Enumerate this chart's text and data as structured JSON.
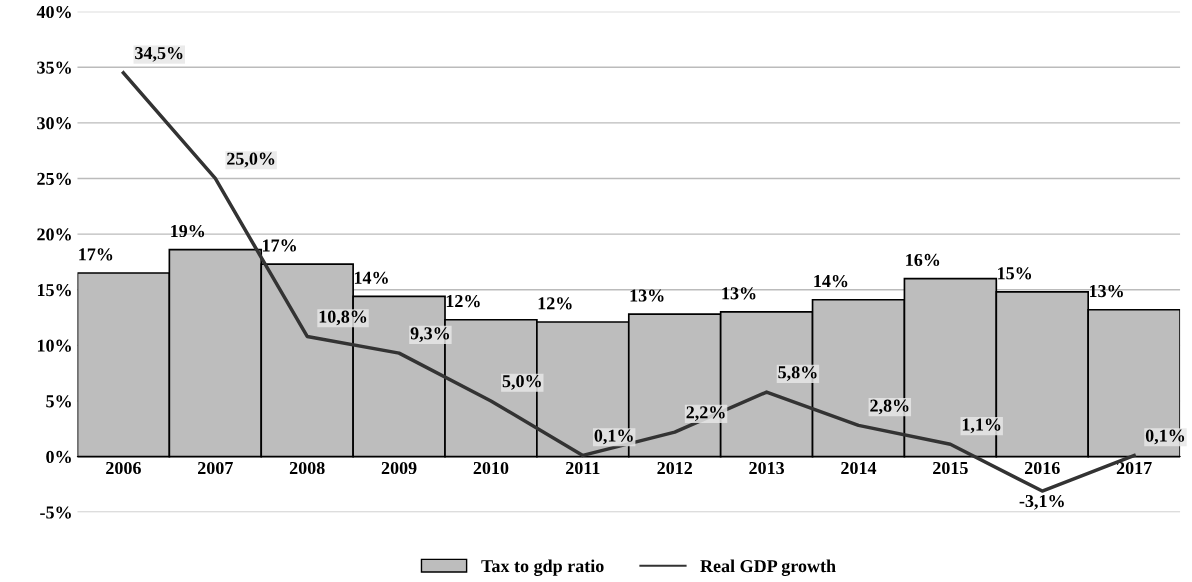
{
  "chart_data": {
    "type": "bar",
    "categories": [
      "2006",
      "2007",
      "2008",
      "2009",
      "2010",
      "2011",
      "2012",
      "2013",
      "2014",
      "2015",
      "2016",
      "2017"
    ],
    "series": [
      {
        "name": "Tax to gdp ratio",
        "color": "#bdbdbd",
        "values": [
          16.5,
          18.6,
          17.3,
          14.4,
          12.3,
          12.1,
          12.8,
          13.0,
          14.1,
          16.0,
          14.8,
          13.2
        ],
        "value_labels": [
          "17%",
          "19%",
          "17%",
          "14%",
          "12%",
          "12%",
          "13%",
          "13%",
          "14%",
          "16%",
          "15%",
          "13%"
        ]
      },
      {
        "name": "Real GDP growth",
        "type": "line",
        "color": "#333333",
        "values": [
          34.5,
          25.0,
          10.8,
          9.3,
          5.0,
          0.1,
          2.2,
          5.8,
          2.8,
          1.1,
          -3.1,
          0.1
        ],
        "value_labels": [
          "34,5%",
          "25,0%",
          "10,8%",
          "9,3%",
          "5,0%",
          "0,1%",
          "2,2%",
          "5,8%",
          "2,8%",
          "1,1%",
          "-3,1%",
          "0,1%"
        ]
      }
    ],
    "ylim": [
      -5,
      40
    ],
    "yticks": [
      {
        "value": -5,
        "label": "-5%"
      },
      {
        "value": 0,
        "label": "0%"
      },
      {
        "value": 5,
        "label": "5%"
      },
      {
        "value": 10,
        "label": "10%"
      },
      {
        "value": 15,
        "label": "15%"
      },
      {
        "value": 20,
        "label": "20%"
      },
      {
        "value": 25,
        "label": "25%"
      },
      {
        "value": 30,
        "label": "30%"
      },
      {
        "value": 35,
        "label": "35%"
      },
      {
        "value": 40,
        "label": "40%"
      }
    ],
    "grid": "y",
    "legend": "bottom",
    "marker": "none",
    "line_style": "solid"
  }
}
